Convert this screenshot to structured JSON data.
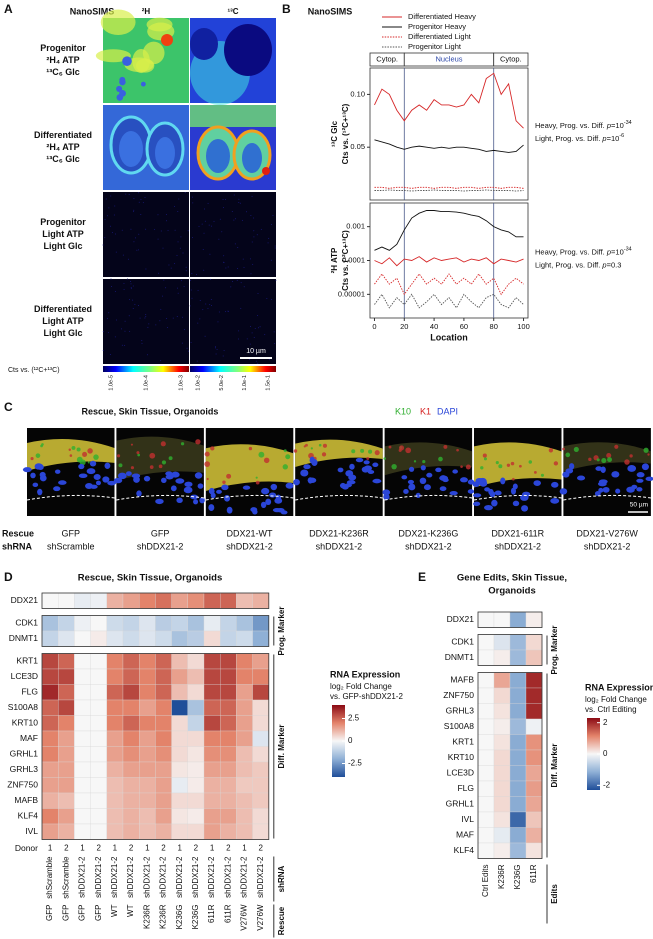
{
  "panel_labels": [
    "A",
    "B",
    "C",
    "D",
    "E"
  ],
  "panel_a": {
    "title": "NanoSIMS",
    "columns": [
      "²H",
      "¹³C"
    ],
    "rows": [
      [
        "Progenitor",
        "²H₄ ATP",
        "¹³C₆ Glc"
      ],
      [
        "Differentiated",
        "²H₄ ATP",
        "¹³C₆ Glc"
      ],
      [
        "Progenitor",
        "Light ATP",
        "Light Glc"
      ],
      [
        "Differentiated",
        "Light ATP",
        "Light Glc"
      ]
    ],
    "scale_bar": "10 µm",
    "colorbar_label": "Cts vs. (¹²C+¹³C)",
    "colorbar_ticks": [
      [
        "1.0e-5",
        "1.0e-4",
        "1.0e-3"
      ],
      [
        "1.0e-2",
        "5.0e-2",
        "1.0e-1",
        "1.5e-1"
      ]
    ]
  },
  "panel_c": {
    "title": "Rescue, Skin Tissue, Organoids",
    "legend": [
      {
        "name": "K10",
        "color": "#2fae2f"
      },
      {
        "name": "K1",
        "color": "#d62020"
      },
      {
        "name": "DAPI",
        "color": "#2b46d8"
      }
    ],
    "row_labels": [
      "Rescue",
      "shRNA"
    ],
    "images": [
      {
        "rescue": "GFP",
        "shrna": "shScramble"
      },
      {
        "rescue": "GFP",
        "shrna": "shDDX21-2"
      },
      {
        "rescue": "DDX21-WT",
        "shrna": "shDDX21-2"
      },
      {
        "rescue": "DDX21-K236R",
        "shrna": "shDDX21-2"
      },
      {
        "rescue": "DDX21-K236G",
        "shrna": "shDDX21-2"
      },
      {
        "rescue": "DDX21-611R",
        "shrna": "shDDX21-2"
      },
      {
        "rescue": "DDX21-V276W",
        "shrna": "shDDX21-2"
      }
    ],
    "scale_bar": "50 µm"
  },
  "chart_data": [
    {
      "type": "line",
      "title": "NanoSIMS",
      "ylabel": [
        "¹³C Glc",
        "Cts vs. (¹²C+¹³C)"
      ],
      "x": [
        0,
        5,
        10,
        15,
        20,
        25,
        30,
        35,
        40,
        45,
        50,
        55,
        60,
        65,
        70,
        75,
        80,
        85,
        90,
        95,
        100
      ],
      "xlim": [
        -3,
        103
      ],
      "ylim": [
        0,
        0.125
      ],
      "yticks": [
        0.05,
        {
          "value": 0.1,
          "label": "0.10"
        }
      ],
      "regions": [
        "Cytop.",
        "Nucleus",
        "Cytop."
      ],
      "vlines": [
        20,
        80
      ],
      "annotations": [
        [
          "Heavy, Prog. vs. Diff. ",
          "p",
          "=10",
          "-34"
        ],
        [
          "Light, Prog. vs. Diff. ",
          "p",
          "=10",
          "-6"
        ]
      ],
      "series": [
        {
          "name": "Differentiated Heavy",
          "color": "#d62728",
          "dash": false,
          "values": [
            0.09,
            0.105,
            0.1,
            0.085,
            0.075,
            0.085,
            0.09,
            0.085,
            0.095,
            0.09,
            0.09,
            0.088,
            0.09,
            0.1,
            0.092,
            0.115,
            0.12,
            0.1,
            0.11,
            0.075,
            0.068
          ]
        },
        {
          "name": "Progenitor Heavy",
          "color": "#111111",
          "dash": false,
          "values": [
            0.057,
            0.055,
            0.053,
            0.05,
            0.048,
            0.05,
            0.051,
            0.05,
            0.049,
            0.05,
            0.049,
            0.05,
            0.05,
            0.049,
            0.048,
            0.046,
            0.047,
            0.046,
            0.045,
            0.046,
            0.052
          ]
        },
        {
          "name": "Differentiated Light",
          "color": "#d62728",
          "dash": true,
          "values": [
            0.012,
            0.012,
            0.011,
            0.012,
            0.012,
            0.011,
            0.012,
            0.012,
            0.011,
            0.012,
            0.012,
            0.011,
            0.012,
            0.012,
            0.011,
            0.012,
            0.012,
            0.011,
            0.012,
            0.012,
            0.011
          ]
        },
        {
          "name": "Progenitor Light",
          "color": "#555555",
          "dash": true,
          "values": [
            0.009,
            0.009,
            0.0095,
            0.009,
            0.009,
            0.0085,
            0.009,
            0.009,
            0.0095,
            0.009,
            0.009,
            0.009,
            0.0085,
            0.009,
            0.009,
            0.0095,
            0.009,
            0.009,
            0.009,
            0.0085,
            0.009
          ]
        }
      ]
    },
    {
      "type": "line",
      "log": true,
      "ylabel": [
        "²H ATP",
        "Cts vs. (¹²C+¹³C)"
      ],
      "xlabel": "Location",
      "x": [
        0,
        5,
        10,
        15,
        20,
        25,
        30,
        35,
        40,
        45,
        50,
        55,
        60,
        65,
        70,
        75,
        80,
        85,
        90,
        95,
        100
      ],
      "xlim": [
        -3,
        103
      ],
      "xticks": [
        0,
        20,
        40,
        60,
        80,
        100
      ],
      "ylim": [
        2e-06,
        0.005
      ],
      "yticks": [
        1e-05,
        0.0001,
        0.001
      ],
      "vlines": [
        20,
        80
      ],
      "annotations": [
        [
          "Heavy, Prog. vs. Diff. ",
          "p",
          "=10",
          "-34"
        ],
        [
          "Light, Prog. vs. Diff. ",
          "p",
          "=0.3"
        ]
      ],
      "series": [
        {
          "color": "#111111",
          "dash": false,
          "values": [
            0.0002,
            0.00025,
            0.0002,
            0.0003,
            0.0008,
            0.0018,
            0.0025,
            0.003,
            0.003,
            0.0028,
            0.0028,
            0.0027,
            0.0025,
            0.0022,
            0.002,
            0.0015,
            0.001,
            0.0008,
            0.0007,
            0.0005,
            0.0005
          ]
        },
        {
          "color": "#d62728",
          "dash": false,
          "values": [
            0.0001,
            8e-05,
            0.00012,
            7e-05,
            0.00011,
            0.0001,
            0.00013,
            9e-05,
            0.00012,
            0.0001,
            0.00011,
            0.00012,
            9e-05,
            0.00011,
            0.0001,
            0.00012,
            8e-05,
            0.00011,
            0.0001,
            9e-05,
            0.00011
          ]
        },
        {
          "color": "#d62728",
          "dash": true,
          "values": [
            2e-05,
            4e-05,
            2e-05,
            3e-05,
            1e-05,
            2e-05,
            4e-05,
            2e-05,
            3e-05,
            2e-05,
            4e-05,
            2e-05,
            3e-05,
            2e-05,
            4e-05,
            2e-05,
            3e-05,
            1e-05,
            2e-05,
            3e-05,
            2e-05
          ]
        },
        {
          "color": "#555555",
          "dash": true,
          "values": [
            5e-06,
            1e-05,
            4e-06,
            8e-06,
            5e-06,
            1e-05,
            4e-06,
            6e-06,
            1e-05,
            5e-06,
            8e-06,
            4e-06,
            1e-05,
            6e-06,
            4e-06,
            8e-06,
            1e-05,
            5e-06,
            4e-06,
            8e-06,
            5e-06
          ]
        }
      ]
    },
    {
      "type": "heatmap",
      "title": "Rescue, Skin Tissue, Organoids",
      "donor_label": "Donor",
      "donor": [
        1,
        2,
        1,
        2,
        1,
        2,
        1,
        2,
        1,
        2,
        1,
        2,
        1,
        2
      ],
      "shrna_label": "shRNA",
      "shrna": [
        "shScramble",
        "shScramble",
        "shDDX21-2",
        "shDDX21-2",
        "shDDX21-2",
        "shDDX21-2",
        "shDDX21-2",
        "shDDX21-2",
        "shDDX21-2",
        "shDDX21-2",
        "shDDX21-2",
        "shDDX21-2",
        "shDDX21-2",
        "shDDX21-2"
      ],
      "rescue_label": "Rescue",
      "rescue": [
        "GFP",
        "GFP",
        "GFP",
        "GFP",
        "WT",
        "WT",
        "K236R",
        "K236R",
        "K236G",
        "K236G",
        "611R",
        "611R",
        "V276W",
        "V276W"
      ],
      "row_groups": [
        {
          "rows": [
            "DDX21"
          ],
          "values": [
            [
              0,
              0,
              -0.3,
              -0.2,
              1.2,
              1.5,
              2,
              2.3,
              1.5,
              1.8,
              2.5,
              2.5,
              1,
              1.2
            ]
          ]
        },
        {
          "label": "Prog. Marker",
          "rows": [
            "CDK1",
            "DNMT1"
          ],
          "values": [
            [
              -1.5,
              -1,
              -0.2,
              0,
              -0.8,
              -1,
              -0.5,
              -1.2,
              -1,
              -1.5,
              -0.3,
              -1,
              -1.5,
              -2.5
            ],
            [
              -1,
              -0.5,
              0,
              0.2,
              -0.5,
              -0.8,
              -0.5,
              -0.8,
              -1.5,
              -1.2,
              0.5,
              -1,
              -0.8,
              -2
            ]
          ]
        },
        {
          "label": "Diff. Marker",
          "rows": [
            "KRT1",
            "LCE3D",
            "FLG",
            "S100A8",
            "KRT10",
            "MAF",
            "GRHL1",
            "GRHL3",
            "ZNF750",
            "MAFB",
            "KLF4",
            "IVL"
          ],
          "values": [
            [
              3,
              2.5,
              0,
              0,
              2,
              2.5,
              2,
              2.5,
              1,
              0.5,
              3,
              3,
              2,
              1.5
            ],
            [
              3,
              3,
              0,
              0,
              2,
              2.5,
              2,
              2.5,
              1.5,
              1,
              3,
              3,
              2,
              2
            ],
            [
              3.5,
              2.5,
              0,
              0,
              2.5,
              3,
              2,
              2.5,
              1,
              0.5,
              3,
              3,
              1.5,
              3
            ],
            [
              2.5,
              3,
              0,
              0,
              2,
              2,
              1.5,
              2,
              -4,
              -1.5,
              2.5,
              2.5,
              1.5,
              0.5
            ],
            [
              2.5,
              2,
              0,
              0,
              2,
              2.5,
              2,
              2,
              0.5,
              -1,
              3,
              2.5,
              1.5,
              0.5
            ],
            [
              2,
              1.5,
              0,
              0,
              1.5,
              2,
              1.5,
              2,
              0.5,
              0.5,
              2,
              2,
              1.5,
              -0.5
            ],
            [
              2,
              1.5,
              0,
              0,
              1.5,
              1.8,
              1.5,
              1.8,
              0.5,
              0.3,
              1.8,
              1.8,
              1,
              0.5
            ],
            [
              1.5,
              1.5,
              0,
              0,
              1.2,
              1.5,
              1.5,
              1.5,
              0.3,
              0.2,
              1.5,
              1.5,
              1,
              0.8
            ],
            [
              1.5,
              1.5,
              0,
              0,
              1,
              1.2,
              1.2,
              1.5,
              -0.3,
              0.2,
              1.2,
              1.2,
              0.8,
              0.8
            ],
            [
              1.2,
              1,
              0,
              0,
              1,
              1.2,
              1.2,
              1.5,
              0.5,
              0.5,
              1.2,
              1.2,
              1,
              0.8
            ],
            [
              2,
              1.5,
              0,
              0,
              1,
              1.2,
              1,
              1.5,
              0.3,
              0.2,
              1.5,
              1.5,
              1,
              0.5
            ],
            [
              1.5,
              1.2,
              0,
              0,
              1,
              1.2,
              1,
              1.2,
              0.5,
              0.5,
              1.5,
              1.2,
              1,
              0.5
            ]
          ]
        }
      ],
      "colorbar": {
        "title": "RNA Expression",
        "subtitle": [
          "log₂ Fold Change",
          "vs. GFP-shDDX21-2"
        ],
        "zlim": [
          -4,
          4
        ],
        "ticks": [
          2.5,
          0,
          -2.5
        ],
        "colors": [
          "#1f4e99",
          "#8fb0d6",
          "#f7f7f7",
          "#e3836a",
          "#8b0a14"
        ]
      }
    },
    {
      "type": "heatmap",
      "title": [
        "Gene Edits, Skin Tissue,",
        "Organoids"
      ],
      "columns_label": "Edits",
      "columns": [
        "Ctrl Edits",
        "K236R",
        "K236G",
        "611R"
      ],
      "row_groups": [
        {
          "rows": [
            "DDX21"
          ],
          "values": [
            [
              0,
              0,
              -1.2,
              0.1
            ]
          ]
        },
        {
          "label": "Prog. Marker",
          "rows": [
            "CDK1",
            "DNMT1"
          ],
          "values": [
            [
              0,
              -0.3,
              -1,
              0.3
            ],
            [
              0,
              0.1,
              -1,
              0.5
            ]
          ]
        },
        {
          "label": "Diff. Marker",
          "rows": [
            "MAFB",
            "ZNF750",
            "GRHL3",
            "S100A8",
            "KRT1",
            "KRT10",
            "LCE3D",
            "FLG",
            "GRHL1",
            "IVL",
            "MAF",
            "KLF4"
          ],
          "values": [
            [
              0,
              0.8,
              -1.2,
              2
            ],
            [
              0,
              0.3,
              -1.2,
              2
            ],
            [
              0,
              0.2,
              -1.2,
              2
            ],
            [
              0,
              0.1,
              -1,
              -0.1
            ],
            [
              0,
              0.2,
              -1.2,
              1
            ],
            [
              0,
              0.3,
              -1.2,
              1
            ],
            [
              0,
              0.3,
              -1.2,
              0.8
            ],
            [
              0,
              0.3,
              -1.2,
              0.9
            ],
            [
              0,
              0.3,
              -1.2,
              0.8
            ],
            [
              0,
              0.2,
              -2,
              0.5
            ],
            [
              0,
              -0.2,
              -1.2,
              0.7
            ],
            [
              0,
              0.1,
              -1,
              0.2
            ]
          ]
        }
      ],
      "colorbar": {
        "title": "RNA Expression",
        "subtitle": [
          "log₂ Fold Change",
          "vs. Ctrl Editing"
        ],
        "zlim": [
          -2.3,
          2.3
        ],
        "ticks": [
          2,
          0,
          -2
        ],
        "colors": [
          "#1f4e99",
          "#8fb0d6",
          "#f7f7f7",
          "#e3836a",
          "#8b0a14"
        ]
      }
    }
  ]
}
